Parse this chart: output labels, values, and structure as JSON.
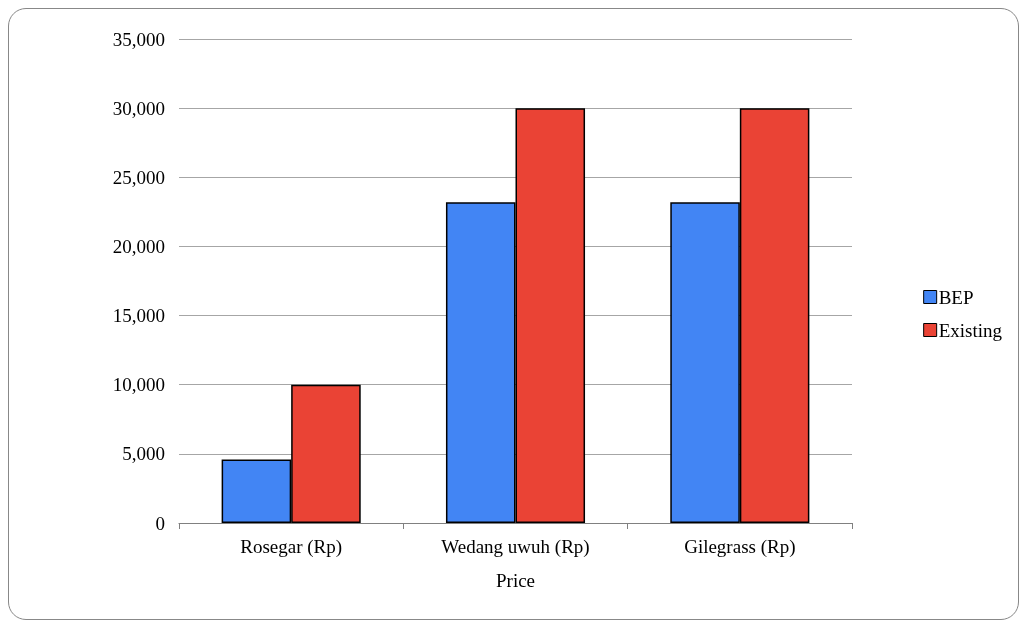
{
  "chart_data": {
    "type": "bar",
    "xlabel": "Price",
    "categories": [
      "Rosegar (Rp)",
      "Wedang uwuh (Rp)",
      "Gilegrass (Rp)"
    ],
    "series": [
      {
        "name": "BEP",
        "color": "#4285f4",
        "values": [
          4600,
          23200,
          23200
        ]
      },
      {
        "name": "Existing",
        "color": "#ea4335",
        "values": [
          10000,
          30000,
          30000
        ]
      }
    ],
    "ylim": [
      0,
      35000
    ],
    "yticks": [
      0,
      {
        "value": 5000,
        "label": "5,000"
      },
      {
        "value": 10000,
        "label": "10,000"
      },
      {
        "value": 15000,
        "label": "15,000"
      },
      {
        "value": 20000,
        "label": "20,000"
      },
      {
        "value": 25000,
        "label": "25,000"
      },
      {
        "value": 30000,
        "label": "30,000"
      },
      {
        "value": 35000,
        "label": "35,000"
      }
    ],
    "grid": "y",
    "legend": "right"
  }
}
